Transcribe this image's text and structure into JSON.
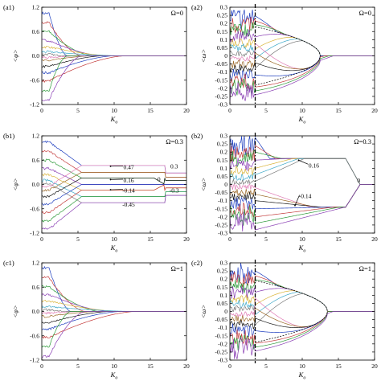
{
  "series_colors": [
    "#1f3fbf",
    "#c43c3c",
    "#2e9b3a",
    "#8a3fb4",
    "#d9b43a",
    "#3fa9c9",
    "#7a7a7a",
    "#e07bb5",
    "#9c6a2a",
    "#1a1a1a"
  ],
  "chart_data": [
    {
      "type": "line",
      "panel": "(a1)",
      "omega_label": "Ω=0",
      "xlabel": "K_o",
      "ylabel": "<φ>",
      "xlim": [
        0,
        20
      ],
      "ylim": [
        -1.2,
        1.2
      ],
      "xticks": [
        0,
        5,
        10,
        15,
        20
      ],
      "xticklabels": [
        "0",
        "5",
        "10",
        "15",
        "20"
      ],
      "yticks": [
        -1.2,
        -0.6,
        0.0,
        0.6,
        1.2
      ],
      "yticklabels": [
        "-1.2",
        "-0.6",
        "0.0",
        "0.6",
        "1.2"
      ],
      "pattern": "converge",
      "branches": [
        1.05,
        0.82,
        0.6,
        0.38,
        0.22,
        0.1,
        0.04,
        -0.04,
        -0.12,
        -0.26,
        -0.42,
        -0.62,
        -0.85,
        -1.08
      ],
      "knees": [
        3.5,
        5.5,
        7,
        8.5,
        10,
        11.5
      ],
      "final": [
        0
      ],
      "annotations": [],
      "vline": null
    },
    {
      "type": "line",
      "panel": "(a2)",
      "omega_label": "Ω=0",
      "xlabel": "K_o",
      "ylabel": "<ω>",
      "xlim": [
        0,
        20
      ],
      "ylim": [
        -0.3,
        0.3
      ],
      "xticks": [
        0,
        5,
        10,
        15,
        20
      ],
      "xticklabels": [
        "0",
        "5",
        "10",
        "15",
        "20"
      ],
      "yticks": [
        -0.3,
        -0.25,
        -0.2,
        -0.15,
        -0.1,
        -0.05,
        0,
        0.05,
        0.1,
        0.15,
        0.2,
        0.25,
        0.3
      ],
      "yticklabels": [
        "-0.3",
        "-0.25",
        "-0.2",
        "-0.15",
        "-0.1",
        "-0.05",
        "0",
        "0.05",
        "0.1",
        "0.15",
        "0.2",
        "0.25",
        "0.3"
      ],
      "pattern": "bubble",
      "k_bifurcation": 3.5,
      "k_close": 12.5,
      "amplitude": 0.18,
      "branches": [
        0.29,
        0.24,
        0.2,
        0.15,
        0.1,
        0.06,
        0.02,
        -0.02,
        -0.06,
        -0.1,
        -0.15,
        -0.2,
        -0.24,
        -0.28
      ],
      "annotations": [],
      "vline": 3.5
    },
    {
      "type": "line",
      "panel": "(b1)",
      "omega_label": "Ω=0.3",
      "xlabel": "K_o",
      "ylabel": "<φ>",
      "xlim": [
        0,
        20
      ],
      "ylim": [
        -1.2,
        1.2
      ],
      "xticks": [
        0,
        5,
        10,
        15,
        20
      ],
      "xticklabels": [
        "0",
        "5",
        "10",
        "15",
        "20"
      ],
      "yticks": [
        -1.2,
        -0.6,
        0.0,
        0.6,
        1.2
      ],
      "yticklabels": [
        "-1.2",
        "-0.6",
        "0.0",
        "0.6",
        "1.2"
      ],
      "pattern": "plateau",
      "branches": [
        1.05,
        0.82,
        0.6,
        0.4,
        0.24,
        0.1,
        0.03,
        -0.05,
        -0.14,
        -0.3,
        -0.48,
        -0.7,
        -0.9,
        -1.1
      ],
      "levels": [
        0.47,
        0.3,
        0.16,
        0,
        -0.14,
        -0.3,
        -0.45
      ],
      "annotations": [
        {
          "text": "0.47",
          "x": 12.0,
          "y": 0.38,
          "ax": 9.5,
          "ay": 0.45
        },
        {
          "text": "0.3",
          "x": 18.3,
          "y": 0.4,
          "ax": null,
          "ay": null
        },
        {
          "text": "0.16",
          "x": 12.0,
          "y": 0.05,
          "ax": 9.5,
          "ay": 0.12
        },
        {
          "text": "0",
          "x": 16.2,
          "y": 0.08,
          "ax": null,
          "ay": null
        },
        {
          "text": "-0.14",
          "x": 12.0,
          "y": -0.2,
          "ax": 9.5,
          "ay": -0.13
        },
        {
          "text": "-0.3",
          "x": 18.3,
          "y": -0.2,
          "ax": null,
          "ay": null
        },
        {
          "text": "-0.45",
          "x": 12.0,
          "y": -0.55,
          "ax": null,
          "ay": null
        }
      ],
      "vline": null
    },
    {
      "type": "line",
      "panel": "(b2)",
      "omega_label": "Ω=0.3",
      "xlabel": "K_o",
      "ylabel": "<ω>",
      "xlim": [
        0,
        20
      ],
      "ylim": [
        -0.3,
        0.3
      ],
      "xticks": [
        0,
        5,
        10,
        15,
        20
      ],
      "xticklabels": [
        "0",
        "5",
        "10",
        "15",
        "20"
      ],
      "yticks": [
        -0.3,
        -0.25,
        -0.2,
        -0.15,
        -0.1,
        -0.05,
        0,
        0.05,
        0.1,
        0.15,
        0.2,
        0.25,
        0.3
      ],
      "yticklabels": [
        "-0.3",
        "-0.25",
        "-0.2",
        "-0.15",
        "-0.1",
        "-0.05",
        "0",
        "0.05",
        "0.1",
        "0.15",
        "0.2",
        "0.25",
        "0.3"
      ],
      "pattern": "omega_plateau",
      "upper": 0.16,
      "lower": -0.14,
      "k_bifurcation": 3.5,
      "k_merge": 18,
      "branches": [
        0.29,
        0.24,
        0.2,
        0.15,
        0.1,
        0.06,
        0.02,
        -0.02,
        -0.06,
        -0.1,
        -0.15,
        -0.2,
        -0.24,
        -0.28
      ],
      "annotations": [
        {
          "text": "0.16",
          "x": 11.6,
          "y": 0.105,
          "ax": 9.5,
          "ay": 0.15
        },
        {
          "text": "-0.14",
          "x": 10.4,
          "y": -0.085,
          "ax": 9.0,
          "ay": -0.13
        },
        {
          "text": "0",
          "x": 17.8,
          "y": 0.012,
          "ax": null,
          "ay": null
        }
      ],
      "vline": 3.5
    },
    {
      "type": "line",
      "panel": "(c1)",
      "omega_label": "Ω=1",
      "xlabel": "K_o",
      "ylabel": "<φ>",
      "xlim": [
        0,
        20
      ],
      "ylim": [
        -1.2,
        1.2
      ],
      "xticks": [
        0,
        5,
        10,
        15,
        20
      ],
      "xticklabels": [
        "0",
        "5",
        "10",
        "15",
        "20"
      ],
      "yticks": [
        -1.2,
        -0.6,
        0.0,
        0.6,
        1.2
      ],
      "yticklabels": [
        "-1.2",
        "-0.6",
        "0.0",
        "0.6",
        "1.2"
      ],
      "pattern": "converge",
      "branches": [
        1.08,
        0.84,
        0.62,
        0.42,
        0.26,
        0.12,
        0.04,
        -0.04,
        -0.12,
        -0.28,
        -0.44,
        -0.64,
        -0.86,
        -1.1
      ],
      "knees": [
        4,
        6,
        8,
        9.5,
        11,
        13
      ],
      "final": [
        0
      ],
      "annotations": [],
      "vline": null
    },
    {
      "type": "line",
      "panel": "(c2)",
      "omega_label": "Ω=1",
      "xlabel": "K_o",
      "ylabel": "<ω>",
      "xlim": [
        0,
        20
      ],
      "ylim": [
        -0.3,
        0.3
      ],
      "xticks": [
        0,
        5,
        10,
        15,
        20
      ],
      "xticklabels": [
        "0",
        "5",
        "10",
        "15",
        "20"
      ],
      "yticks": [
        -0.3,
        -0.25,
        -0.2,
        -0.15,
        -0.1,
        -0.05,
        0,
        0.05,
        0.1,
        0.15,
        0.2,
        0.25,
        0.3
      ],
      "yticklabels": [
        "-0.3",
        "-0.25",
        "-0.2",
        "-0.15",
        "-0.1",
        "-0.05",
        "0",
        "0.05",
        "0.1",
        "0.15",
        "0.2",
        "0.25",
        "0.3"
      ],
      "pattern": "bubble",
      "k_bifurcation": 3.5,
      "k_close": 13.5,
      "amplitude": 0.19,
      "branches": [
        0.29,
        0.24,
        0.2,
        0.15,
        0.1,
        0.06,
        0.02,
        -0.02,
        -0.06,
        -0.1,
        -0.15,
        -0.2,
        -0.24,
        -0.28
      ],
      "annotations": [],
      "vline": 3.5
    }
  ]
}
